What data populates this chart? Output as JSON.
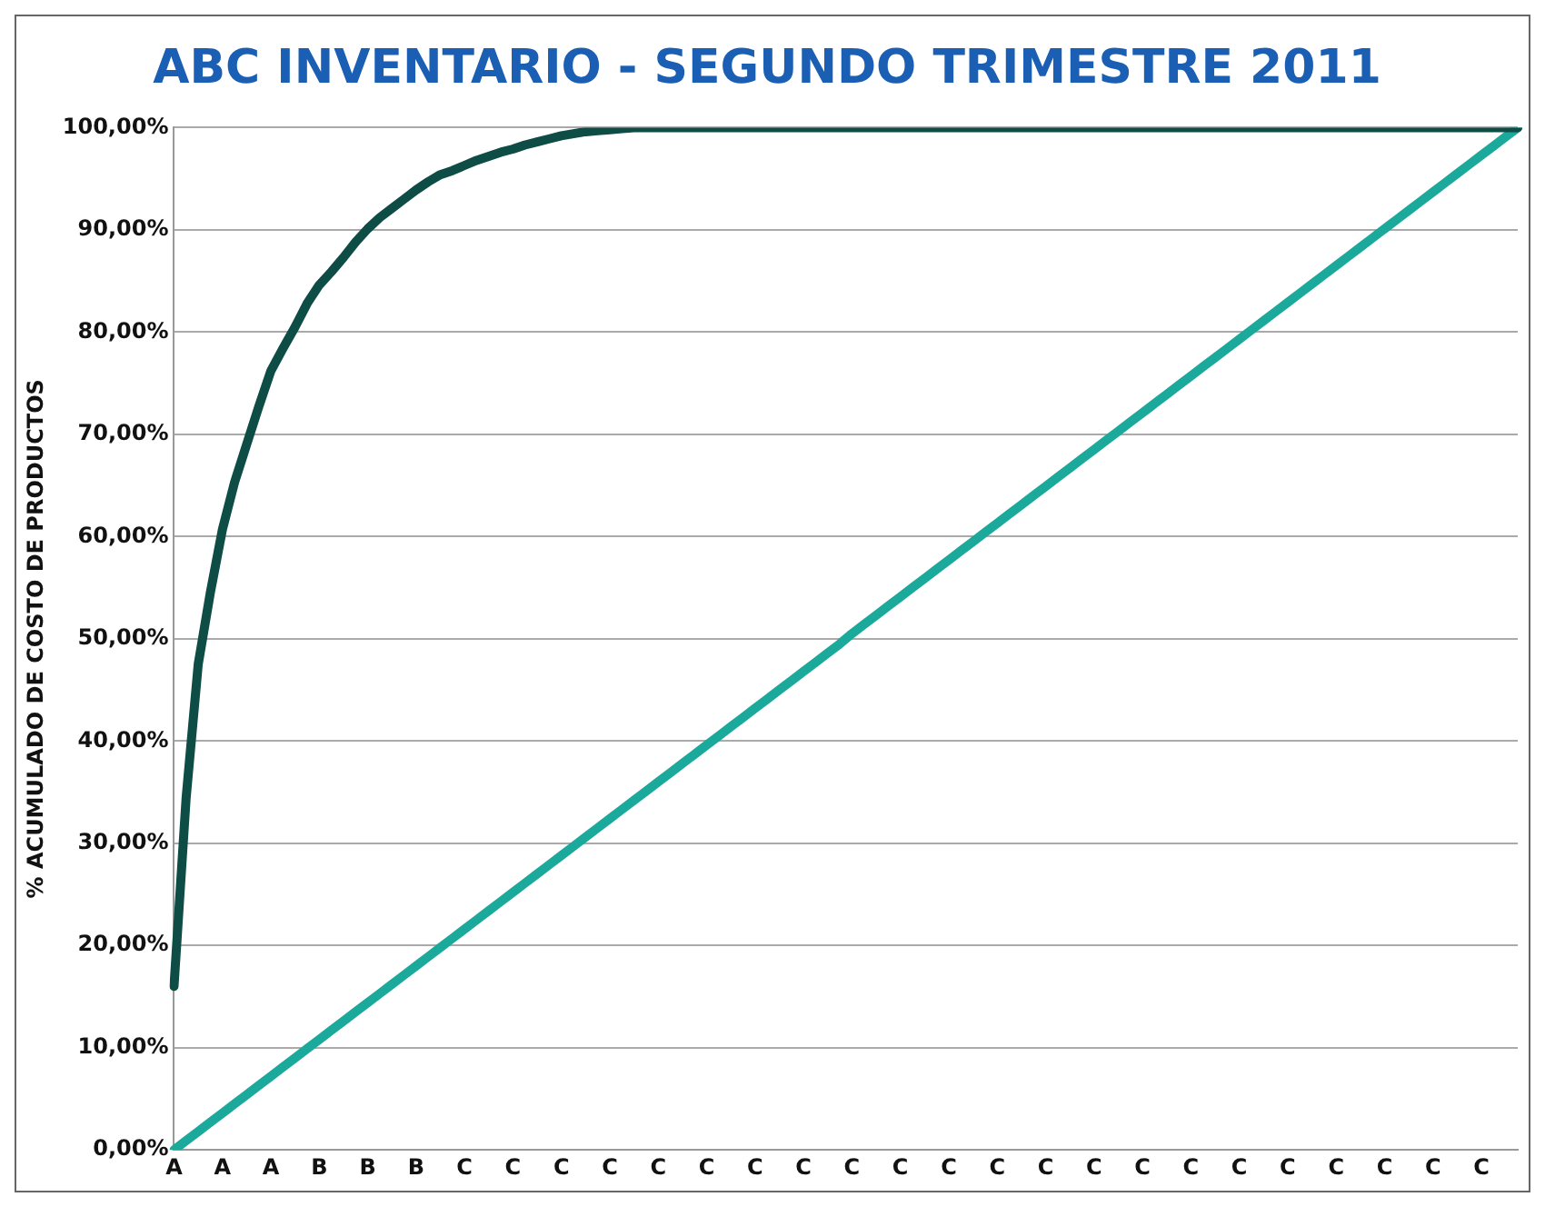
{
  "chart_data": {
    "type": "line",
    "title": "ABC INVENTARIO - SEGUNDO TRIMESTRE 2011",
    "ylabel": "% ACUMULADO DE COSTO DE PRODUCTOS",
    "categories": [
      "A",
      null,
      null,
      null,
      "A",
      null,
      null,
      null,
      "A",
      null,
      null,
      null,
      "B",
      null,
      null,
      null,
      "B",
      null,
      null,
      null,
      "B",
      null,
      null,
      null,
      "C",
      null,
      null,
      null,
      "C",
      null,
      null,
      null,
      "C",
      null,
      null,
      null,
      "C",
      null,
      null,
      null,
      "C",
      null,
      null,
      null,
      "C",
      null,
      null,
      null,
      "C",
      null,
      null,
      null,
      "C",
      null,
      null,
      null,
      "C",
      null,
      null,
      null,
      "C",
      null,
      null,
      null,
      "C",
      null,
      null,
      null,
      "C",
      null,
      null,
      null,
      "C",
      null,
      null,
      null,
      "C",
      null,
      null,
      null,
      "C",
      null,
      null,
      null,
      "C",
      null,
      null,
      null,
      "C",
      null,
      null,
      null,
      "C",
      null,
      null,
      null,
      "C",
      null,
      null,
      null,
      "C",
      null,
      null,
      null,
      "C",
      null,
      null,
      null,
      "C",
      null,
      null,
      null
    ],
    "ylim": [
      0,
      100
    ],
    "yticks": [
      {
        "value": 0,
        "label": "0,00%"
      },
      {
        "value": 10,
        "label": "10,00%"
      },
      {
        "value": 20,
        "label": "20,00%"
      },
      {
        "value": 30,
        "label": "30,00%"
      },
      {
        "value": 40,
        "label": "40,00%"
      },
      {
        "value": 50,
        "label": "50,00%"
      },
      {
        "value": 60,
        "label": "60,00%"
      },
      {
        "value": 70,
        "label": "70,00%"
      },
      {
        "value": 80,
        "label": "80,00%"
      },
      {
        "value": 90,
        "label": "90,00%"
      },
      {
        "value": 100,
        "label": "100,00%"
      }
    ],
    "grid": "y",
    "marker": "none",
    "line_style": "solid",
    "series": [
      {
        "color": "#0e4d45",
        "values": [
          16,
          34.4,
          47.5,
          54.5,
          60.7,
          65.3,
          69,
          72.7,
          76.2,
          78.4,
          80.5,
          82.8,
          84.6,
          85.9,
          87.3,
          88.8,
          90.1,
          91.2,
          92.1,
          93,
          93.9,
          94.7,
          95.4,
          95.8,
          96.3,
          96.8,
          97.2,
          97.6,
          97.9,
          98.3,
          98.6,
          98.9,
          99.2,
          99.4,
          99.6,
          99.7,
          99.8,
          99.9,
          100,
          100,
          100,
          100,
          100,
          100,
          100,
          100,
          100,
          100,
          100,
          100,
          100,
          100,
          100,
          100,
          100,
          100,
          100,
          100,
          100,
          100,
          100,
          100,
          100,
          100,
          100,
          100,
          100,
          100,
          100,
          100,
          100,
          100,
          100,
          100,
          100,
          100,
          100,
          100,
          100,
          100,
          100,
          100,
          100,
          100,
          100,
          100,
          100,
          100,
          100,
          100,
          100,
          100,
          100,
          100,
          100,
          100,
          100,
          100,
          100,
          100,
          100,
          100,
          100,
          100,
          100,
          100,
          100,
          100,
          100,
          100,
          100,
          100
        ]
      },
      {
        "color": "#1aa99b",
        "values": [
          0,
          0.9,
          1.8,
          2.7,
          3.6,
          4.5,
          5.4,
          6.3,
          7.2,
          8.1,
          9,
          9.9,
          10.8,
          11.7,
          12.6,
          13.5,
          14.4,
          15.3,
          16.2,
          17.1,
          18,
          18.9,
          19.8,
          20.7,
          21.6,
          22.5,
          23.4,
          24.3,
          25.2,
          26.1,
          27,
          27.9,
          28.8,
          29.7,
          30.6,
          31.5,
          32.4,
          33.3,
          34.2,
          35.1,
          36,
          36.9,
          37.8,
          38.7,
          39.6,
          40.5,
          41.4,
          42.3,
          43.2,
          44.1,
          45,
          45.9,
          46.8,
          47.7,
          48.6,
          49.5,
          50.5,
          51.4,
          52.3,
          53.2,
          54.1,
          55,
          55.9,
          56.8,
          57.7,
          58.6,
          59.5,
          60.4,
          61.3,
          62.2,
          63.1,
          64,
          64.9,
          65.8,
          66.7,
          67.6,
          68.5,
          69.4,
          70.3,
          71.2,
          72.1,
          73,
          73.9,
          74.8,
          75.7,
          76.6,
          77.5,
          78.4,
          79.3,
          80.2,
          81.1,
          82,
          82.9,
          83.8,
          84.7,
          85.6,
          86.5,
          87.4,
          88.3,
          89.2,
          90.1,
          91,
          91.9,
          92.8,
          93.7,
          94.6,
          95.5,
          96.4,
          97.3,
          98.2,
          99.1,
          100
        ]
      }
    ]
  }
}
